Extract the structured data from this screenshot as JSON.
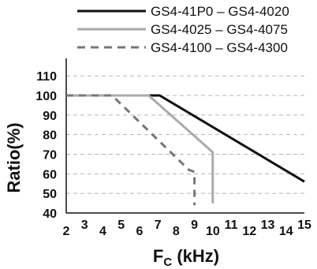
{
  "chart_data": {
    "type": "line",
    "xlabel": "F",
    "xlabel_sub": "C",
    "xlabel_unit": " (kHz)",
    "ylabel": "Ratio(%)",
    "xlim": [
      2,
      15
    ],
    "ylim": [
      40,
      115
    ],
    "x_ticks": [
      2,
      3,
      4,
      5,
      6,
      7,
      8,
      9,
      10,
      11,
      12,
      13,
      14,
      15
    ],
    "y_ticks": [
      40,
      50,
      60,
      70,
      80,
      90,
      100,
      110
    ],
    "grid": true,
    "legend_position": "top",
    "series": [
      {
        "name": "GS4-41P0 – GS4-4020",
        "color": "#111111",
        "style": "solid",
        "points": [
          [
            2,
            100
          ],
          [
            7.1,
            100
          ],
          [
            15,
            56
          ]
        ]
      },
      {
        "name": "GS4-4025 – GS4-4075",
        "color": "#aaaaaa",
        "style": "solid",
        "points": [
          [
            2,
            100
          ],
          [
            6.5,
            100
          ],
          [
            10,
            71
          ],
          [
            10,
            45
          ]
        ]
      },
      {
        "name": "GS4-4100 – GS4-4300",
        "color": "#777777",
        "style": "dashed",
        "points": [
          [
            2,
            100
          ],
          [
            4.5,
            100
          ],
          [
            8.7,
            62
          ],
          [
            9,
            61
          ],
          [
            9,
            44
          ]
        ]
      }
    ]
  }
}
